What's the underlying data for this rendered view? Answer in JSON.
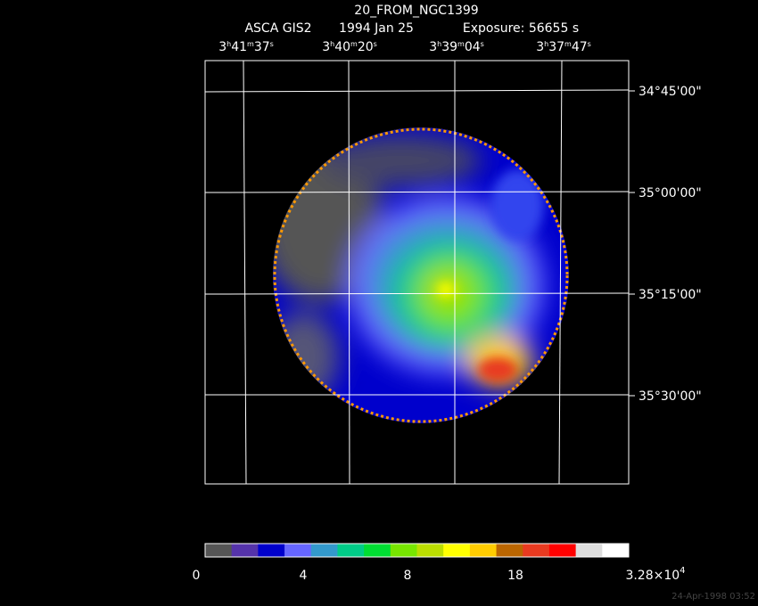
{
  "header": {
    "title": "20_FROM_NGC1399",
    "instrument": "ASCA GIS2",
    "date": "1994 Jan 25",
    "exposure": "Exposure: 56655 s"
  },
  "ra_labels": [
    [
      "3",
      "h",
      "41",
      "m",
      "37",
      "s"
    ],
    [
      "3",
      "h",
      "40",
      "m",
      "20",
      "s"
    ],
    [
      "3",
      "h",
      "39",
      "m",
      "04",
      "s"
    ],
    [
      "3",
      "h",
      "37",
      "m",
      "47",
      "s"
    ]
  ],
  "dec_labels": [
    "34°45'00\"",
    "35°00'00\"",
    "35°15'00\"",
    "35°30'00\""
  ],
  "colorbar": {
    "colors": [
      "#555555",
      "#5533aa",
      "#0000cc",
      "#6666ff",
      "#3399cc",
      "#00cc88",
      "#00dd33",
      "#77e600",
      "#bbdd00",
      "#ffff00",
      "#ffcc00",
      "#bb6600",
      "#e83a20",
      "#ff0000",
      "#dddddd",
      "#ffffff"
    ],
    "labels": [
      "0",
      "4",
      "8",
      "18",
      [
        "3.28×10",
        "4"
      ]
    ]
  },
  "footer": "24-Apr-1998 03:52"
}
